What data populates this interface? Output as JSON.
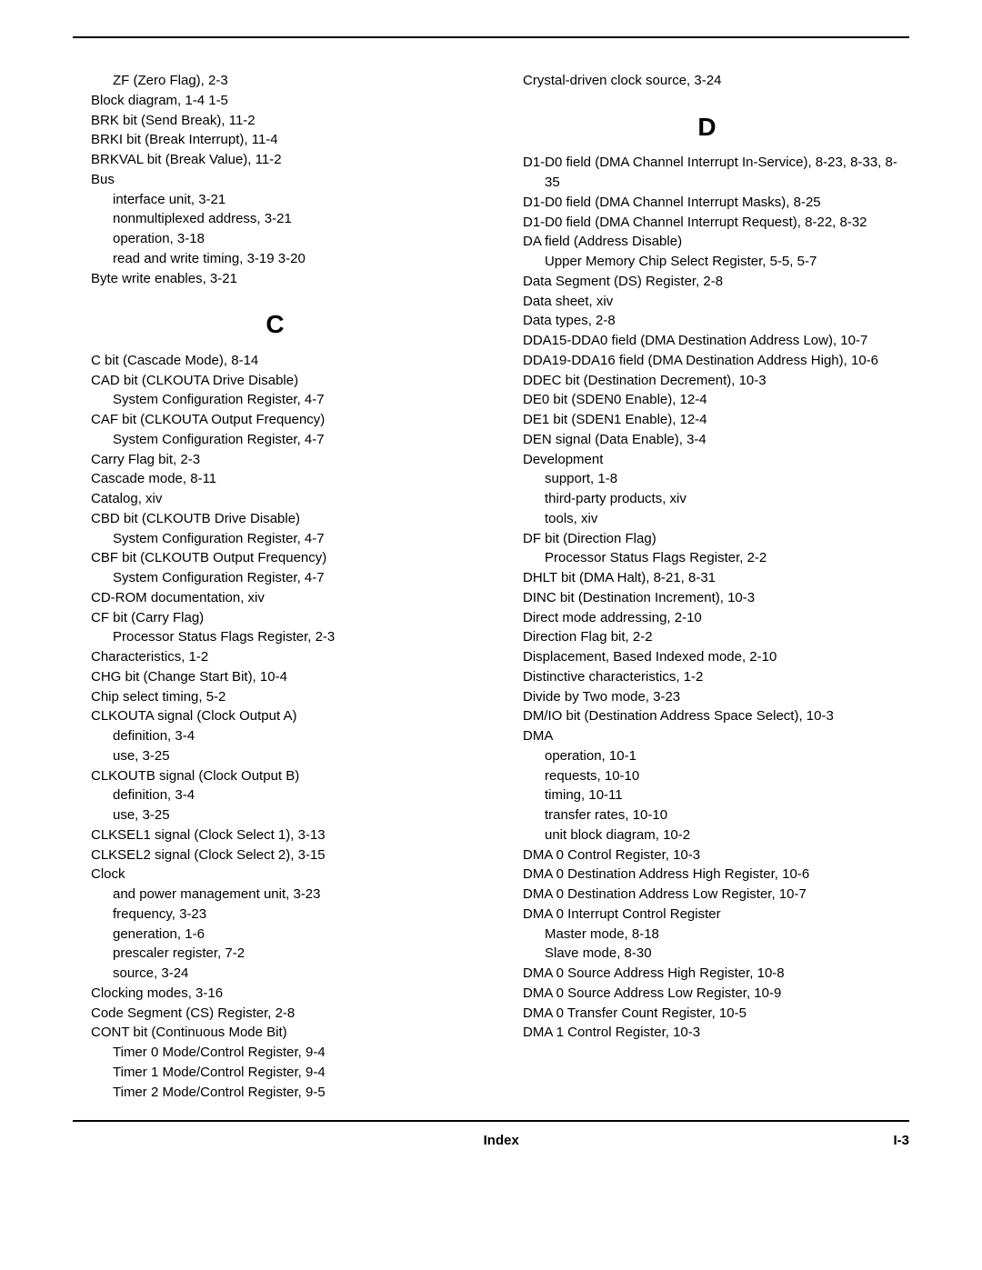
{
  "page": {
    "footer_center": "Index",
    "footer_right": "I-3"
  },
  "left_col": [
    {
      "lvl": 2,
      "text": "ZF (Zero Flag), 2-3"
    },
    {
      "lvl": 1,
      "text": "Block diagram, 1-4 1-5"
    },
    {
      "lvl": 1,
      "text": "BRK bit (Send Break), 11-2"
    },
    {
      "lvl": 1,
      "text": "BRKI bit (Break Interrupt), 11-4"
    },
    {
      "lvl": 1,
      "text": "BRKVAL bit (Break Value), 11-2"
    },
    {
      "lvl": 1,
      "text": "Bus"
    },
    {
      "lvl": 2,
      "text": "interface unit, 3-21"
    },
    {
      "lvl": 2,
      "text": "nonmultiplexed address, 3-21"
    },
    {
      "lvl": 2,
      "text": "operation, 3-18"
    },
    {
      "lvl": 2,
      "text": "read and write timing, 3-19 3-20"
    },
    {
      "lvl": 1,
      "text": "Byte write enables, 3-21"
    },
    {
      "letter": "C"
    },
    {
      "lvl": 1,
      "text": "C bit (Cascade Mode), 8-14"
    },
    {
      "lvl": 1,
      "text": "CAD bit (CLKOUTA Drive Disable)"
    },
    {
      "lvl": 2,
      "text": "System Configuration Register, 4-7"
    },
    {
      "lvl": 1,
      "text": "CAF bit (CLKOUTA Output Frequency)"
    },
    {
      "lvl": 2,
      "text": "System Configuration Register, 4-7"
    },
    {
      "lvl": 1,
      "text": "Carry Flag bit, 2-3"
    },
    {
      "lvl": 1,
      "text": "Cascade mode, 8-11"
    },
    {
      "lvl": 1,
      "text": "Catalog, xiv"
    },
    {
      "lvl": 1,
      "text": "CBD bit (CLKOUTB Drive Disable)"
    },
    {
      "lvl": 2,
      "text": "System Configuration Register, 4-7"
    },
    {
      "lvl": 1,
      "text": "CBF bit (CLKOUTB Output Frequency)"
    },
    {
      "lvl": 2,
      "text": "System Configuration Register, 4-7"
    },
    {
      "lvl": 1,
      "text": "CD-ROM documentation, xiv"
    },
    {
      "lvl": 1,
      "text": "CF bit (Carry Flag)"
    },
    {
      "lvl": 2,
      "text": "Processor Status Flags Register, 2-3"
    },
    {
      "lvl": 1,
      "text": "Characteristics, 1-2"
    },
    {
      "lvl": 1,
      "text": "CHG bit (Change Start Bit), 10-4"
    },
    {
      "lvl": 1,
      "text": "Chip select timing, 5-2"
    },
    {
      "lvl": 1,
      "text": "CLKOUTA signal (Clock Output A)"
    },
    {
      "lvl": 2,
      "text": "definition, 3-4"
    },
    {
      "lvl": 2,
      "text": "use, 3-25"
    },
    {
      "lvl": 1,
      "text": "CLKOUTB signal (Clock Output B)"
    },
    {
      "lvl": 2,
      "text": "definition, 3-4"
    },
    {
      "lvl": 2,
      "text": "use, 3-25"
    },
    {
      "lvl": 1,
      "text": "CLKSEL1 signal (Clock Select 1), 3-13"
    },
    {
      "lvl": 1,
      "text": "CLKSEL2 signal (Clock Select 2), 3-15"
    },
    {
      "lvl": 1,
      "text": "Clock"
    },
    {
      "lvl": 2,
      "text": "and power management unit, 3-23"
    },
    {
      "lvl": 2,
      "text": "frequency, 3-23"
    },
    {
      "lvl": 2,
      "text": "generation, 1-6"
    },
    {
      "lvl": 2,
      "text": "prescaler register, 7-2"
    },
    {
      "lvl": 2,
      "text": "source, 3-24"
    },
    {
      "lvl": 1,
      "text": "Clocking modes, 3-16"
    },
    {
      "lvl": 1,
      "text": "Code Segment (CS) Register, 2-8"
    },
    {
      "lvl": 1,
      "text": "CONT bit (Continuous Mode Bit)"
    },
    {
      "lvl": 2,
      "text": "Timer 0 Mode/Control Register, 9-4"
    },
    {
      "lvl": 2,
      "text": "Timer 1 Mode/Control Register, 9-4"
    },
    {
      "lvl": 2,
      "text": "Timer 2 Mode/Control Register, 9-5"
    }
  ],
  "right_col": [
    {
      "lvl": 1,
      "text": "Crystal-driven clock source, 3-24"
    },
    {
      "letter": "D"
    },
    {
      "lvl": 1,
      "text": "D1-D0 field (DMA Channel Interrupt In-Service), 8-23, 8-33, 8-35"
    },
    {
      "lvl": 1,
      "text": "D1-D0 field (DMA Channel Interrupt Masks), 8-25"
    },
    {
      "lvl": 1,
      "text": "D1-D0 field (DMA Channel Interrupt Request), 8-22, 8-32"
    },
    {
      "lvl": 1,
      "text": "DA field (Address Disable)"
    },
    {
      "lvl": 2,
      "text": "Upper Memory Chip Select Register, 5-5, 5-7"
    },
    {
      "lvl": 1,
      "text": "Data Segment (DS) Register, 2-8"
    },
    {
      "lvl": 1,
      "text": "Data sheet, xiv"
    },
    {
      "lvl": 1,
      "text": "Data types, 2-8"
    },
    {
      "lvl": 1,
      "text": "DDA15-DDA0 field (DMA Destination Address Low), 10-7"
    },
    {
      "lvl": 1,
      "text": "DDA19-DDA16 field (DMA Destination Address High), 10-6"
    },
    {
      "lvl": 1,
      "text": "DDEC bit (Destination Decrement), 10-3"
    },
    {
      "lvl": 1,
      "text": "DE0 bit (SDEN0 Enable), 12-4"
    },
    {
      "lvl": 1,
      "text": "DE1 bit (SDEN1 Enable), 12-4"
    },
    {
      "lvl": 1,
      "text": "DEN signal (Data Enable), 3-4"
    },
    {
      "lvl": 1,
      "text": "Development"
    },
    {
      "lvl": 2,
      "text": "support, 1-8"
    },
    {
      "lvl": 2,
      "text": "third-party products, xiv"
    },
    {
      "lvl": 2,
      "text": "tools, xiv"
    },
    {
      "lvl": 1,
      "text": "DF bit (Direction Flag)"
    },
    {
      "lvl": 2,
      "text": "Processor Status Flags Register, 2-2"
    },
    {
      "lvl": 1,
      "text": "DHLT bit (DMA Halt), 8-21, 8-31"
    },
    {
      "lvl": 1,
      "text": "DINC bit (Destination Increment), 10-3"
    },
    {
      "lvl": 1,
      "text": "Direct mode addressing, 2-10"
    },
    {
      "lvl": 1,
      "text": "Direction Flag bit, 2-2"
    },
    {
      "lvl": 1,
      "text": "Displacement, Based Indexed mode, 2-10"
    },
    {
      "lvl": 1,
      "text": "Distinctive characteristics, 1-2"
    },
    {
      "lvl": 1,
      "text": "Divide by Two mode, 3-23"
    },
    {
      "lvl": 1,
      "text": "DM/IO bit (Destination Address Space Select), 10-3"
    },
    {
      "lvl": 1,
      "text": "DMA"
    },
    {
      "lvl": 2,
      "text": "operation, 10-1"
    },
    {
      "lvl": 2,
      "text": "requests, 10-10"
    },
    {
      "lvl": 2,
      "text": "timing, 10-11"
    },
    {
      "lvl": 2,
      "text": "transfer rates, 10-10"
    },
    {
      "lvl": 2,
      "text": "unit block diagram, 10-2"
    },
    {
      "lvl": 1,
      "text": "DMA 0 Control Register, 10-3"
    },
    {
      "lvl": 1,
      "text": "DMA 0 Destination Address High Register, 10-6"
    },
    {
      "lvl": 1,
      "text": "DMA 0 Destination Address Low Register, 10-7"
    },
    {
      "lvl": 1,
      "text": "DMA 0 Interrupt Control Register"
    },
    {
      "lvl": 2,
      "text": "Master mode, 8-18"
    },
    {
      "lvl": 2,
      "text": "Slave mode, 8-30"
    },
    {
      "lvl": 1,
      "text": "DMA 0 Source Address High Register, 10-8"
    },
    {
      "lvl": 1,
      "text": "DMA 0 Source Address Low Register, 10-9"
    },
    {
      "lvl": 1,
      "text": "DMA 0 Transfer Count Register, 10-5"
    },
    {
      "lvl": 1,
      "text": "DMA 1 Control Register, 10-3"
    }
  ]
}
